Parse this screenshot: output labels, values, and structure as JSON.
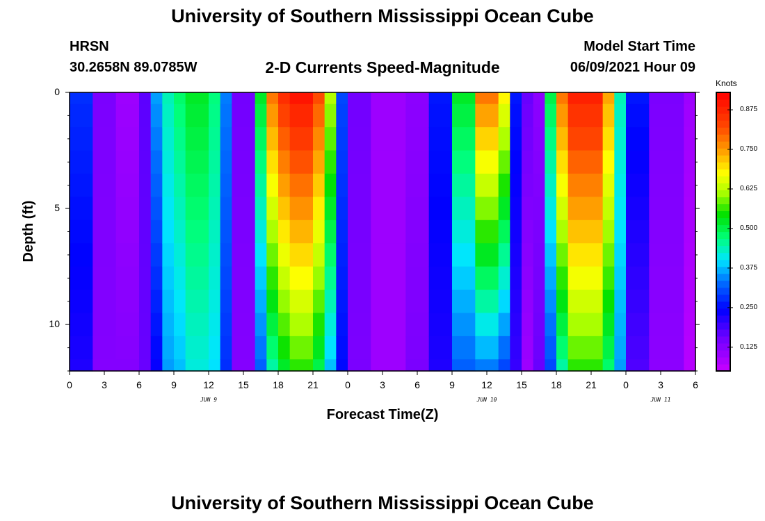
{
  "header": {
    "title": "University of Southern Mississippi Ocean Cube",
    "station": "HRSN",
    "coords": "30.2658N  89.0785W",
    "subtitle": "2-D Currents Speed-Magnitude",
    "model_label": "Model Start Time",
    "model_time": "06/09/2021 Hour 09"
  },
  "footer": {
    "title": "University of Southern Mississippi Ocean Cube"
  },
  "colors": {
    "axis": "#000000",
    "background": "#ffffff"
  },
  "chart_data": {
    "type": "heatmap",
    "xlabel": "Forecast Time(Z)",
    "ylabel": "Depth (ft)",
    "colorbar_label": "Knots",
    "x_range_hours": [
      0,
      54
    ],
    "ylim": [
      0,
      12
    ],
    "x_ticks": [
      {
        "h": 0,
        "label": "0"
      },
      {
        "h": 3,
        "label": "3"
      },
      {
        "h": 6,
        "label": "6"
      },
      {
        "h": 9,
        "label": "9"
      },
      {
        "h": 12,
        "label": "12"
      },
      {
        "h": 15,
        "label": "15"
      },
      {
        "h": 18,
        "label": "18"
      },
      {
        "h": 21,
        "label": "21"
      },
      {
        "h": 24,
        "label": "0"
      },
      {
        "h": 27,
        "label": "3"
      },
      {
        "h": 30,
        "label": "6"
      },
      {
        "h": 33,
        "label": "9"
      },
      {
        "h": 36,
        "label": "12"
      },
      {
        "h": 39,
        "label": "15"
      },
      {
        "h": 42,
        "label": "18"
      },
      {
        "h": 45,
        "label": "21"
      },
      {
        "h": 48,
        "label": "0"
      },
      {
        "h": 51,
        "label": "3"
      },
      {
        "h": 54,
        "label": "6"
      }
    ],
    "date_labels": [
      {
        "h": 12,
        "label": "JUN 9"
      },
      {
        "h": 36,
        "label": "JUN 10"
      },
      {
        "h": 51,
        "label": "JUN 11"
      }
    ],
    "y_ticks": [
      {
        "depth": 0,
        "label": "0"
      },
      {
        "depth": 5,
        "label": "5"
      },
      {
        "depth": 10,
        "label": "10"
      }
    ],
    "colorbar": {
      "min": 0.05,
      "max": 0.93,
      "ticks": [
        "0.125",
        "0.250",
        "0.375",
        "0.500",
        "0.625",
        "0.750",
        "0.875"
      ]
    },
    "depth_levels": [
      0,
      1,
      2,
      3,
      4,
      5,
      6,
      7,
      8,
      9,
      10,
      11,
      12
    ],
    "speed_profiles": [
      {
        "start_h": 0,
        "end_h": 2,
        "top": 0.28,
        "bottom": 0.22
      },
      {
        "start_h": 2,
        "end_h": 4,
        "top": 0.14,
        "bottom": 0.13
      },
      {
        "start_h": 4,
        "end_h": 6,
        "top": 0.1,
        "bottom": 0.13
      },
      {
        "start_h": 6,
        "end_h": 7,
        "top": 0.17,
        "bottom": 0.16
      },
      {
        "start_h": 7,
        "end_h": 8,
        "top": 0.36,
        "bottom": 0.24
      },
      {
        "start_h": 8,
        "end_h": 9,
        "top": 0.44,
        "bottom": 0.36
      },
      {
        "start_h": 9,
        "end_h": 10,
        "top": 0.48,
        "bottom": 0.38
      },
      {
        "start_h": 10,
        "end_h": 12,
        "top": 0.52,
        "bottom": 0.42
      },
      {
        "start_h": 12,
        "end_h": 13,
        "top": 0.47,
        "bottom": 0.4
      },
      {
        "start_h": 13,
        "end_h": 14,
        "top": 0.34,
        "bottom": 0.28
      },
      {
        "start_h": 14,
        "end_h": 16,
        "top": 0.15,
        "bottom": 0.13
      },
      {
        "start_h": 16,
        "end_h": 17,
        "top": 0.52,
        "bottom": 0.32
      },
      {
        "start_h": 17,
        "end_h": 18,
        "top": 0.78,
        "bottom": 0.45
      },
      {
        "start_h": 18,
        "end_h": 19,
        "top": 0.86,
        "bottom": 0.52
      },
      {
        "start_h": 19,
        "end_h": 21,
        "top": 0.9,
        "bottom": 0.56
      },
      {
        "start_h": 21,
        "end_h": 22,
        "top": 0.82,
        "bottom": 0.5
      },
      {
        "start_h": 22,
        "end_h": 23,
        "top": 0.62,
        "bottom": 0.38
      },
      {
        "start_h": 23,
        "end_h": 24,
        "top": 0.3,
        "bottom": 0.25
      },
      {
        "start_h": 24,
        "end_h": 26,
        "top": 0.15,
        "bottom": 0.14
      },
      {
        "start_h": 26,
        "end_h": 29,
        "top": 0.1,
        "bottom": 0.1
      },
      {
        "start_h": 29,
        "end_h": 31,
        "top": 0.12,
        "bottom": 0.14
      },
      {
        "start_h": 31,
        "end_h": 33,
        "top": 0.26,
        "bottom": 0.22
      },
      {
        "start_h": 33,
        "end_h": 35,
        "top": 0.52,
        "bottom": 0.32
      },
      {
        "start_h": 35,
        "end_h": 37,
        "top": 0.78,
        "bottom": 0.34
      },
      {
        "start_h": 37,
        "end_h": 38,
        "top": 0.68,
        "bottom": 0.3
      },
      {
        "start_h": 38,
        "end_h": 39,
        "top": 0.26,
        "bottom": 0.2
      },
      {
        "start_h": 39,
        "end_h": 40,
        "top": 0.16,
        "bottom": 0.1
      },
      {
        "start_h": 40,
        "end_h": 41,
        "top": 0.12,
        "bottom": 0.16
      },
      {
        "start_h": 41,
        "end_h": 42,
        "top": 0.5,
        "bottom": 0.3
      },
      {
        "start_h": 42,
        "end_h": 43,
        "top": 0.78,
        "bottom": 0.45
      },
      {
        "start_h": 43,
        "end_h": 46,
        "top": 0.88,
        "bottom": 0.56
      },
      {
        "start_h": 46,
        "end_h": 47,
        "top": 0.74,
        "bottom": 0.48
      },
      {
        "start_h": 47,
        "end_h": 48,
        "top": 0.44,
        "bottom": 0.36
      },
      {
        "start_h": 48,
        "end_h": 50,
        "top": 0.26,
        "bottom": 0.18
      },
      {
        "start_h": 50,
        "end_h": 53,
        "top": 0.14,
        "bottom": 0.12
      },
      {
        "start_h": 53,
        "end_h": 54,
        "top": 0.1,
        "bottom": 0.07
      }
    ]
  }
}
